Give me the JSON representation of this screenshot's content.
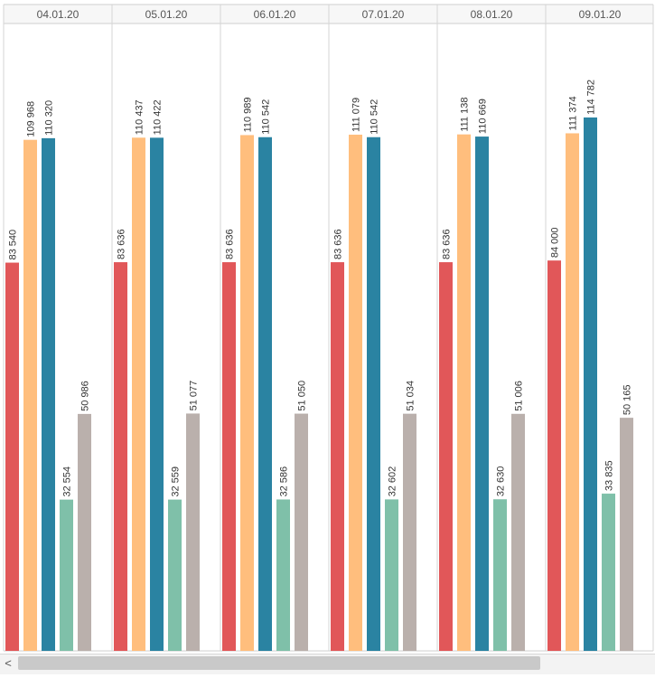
{
  "chart_data": {
    "type": "bar",
    "categories": [
      "04.01.20",
      "05.01.20",
      "06.01.20",
      "07.01.20",
      "08.01.20",
      "09.01.20"
    ],
    "series": [
      {
        "values": [
          83540,
          83636,
          83636,
          83636,
          83636,
          84000
        ],
        "labels": [
          "83 540",
          "83 636",
          "83 636",
          "83 636",
          "83 636",
          "84 000"
        ]
      },
      {
        "values": [
          109968,
          110437,
          110989,
          111079,
          111138,
          111374
        ],
        "labels": [
          "109 968",
          "110 437",
          "110 989",
          "111 079",
          "111 138",
          "111 374"
        ]
      },
      {
        "values": [
          110320,
          110422,
          110542,
          110542,
          110669,
          114782
        ],
        "labels": [
          "110 320",
          "110 422",
          "110 542",
          "110 542",
          "110 669",
          "114 782"
        ]
      },
      {
        "values": [
          32554,
          32559,
          32586,
          32602,
          32630,
          33835
        ],
        "labels": [
          "32 554",
          "32 559",
          "32 586",
          "32 602",
          "32 630",
          "33 835"
        ]
      },
      {
        "values": [
          50986,
          51077,
          51050,
          51034,
          51006,
          50165
        ],
        "labels": [
          "50 986",
          "51 077",
          "51 050",
          "51 034",
          "51 006",
          "50 165"
        ]
      }
    ],
    "ylim": [
      0,
      135000
    ],
    "grid": false,
    "colors": [
      "#e15759",
      "#ffbe7d",
      "#2a83a2",
      "#7fc0a9",
      "#bab0ac"
    ]
  },
  "scrollbar": {
    "left_arrow": "<"
  }
}
